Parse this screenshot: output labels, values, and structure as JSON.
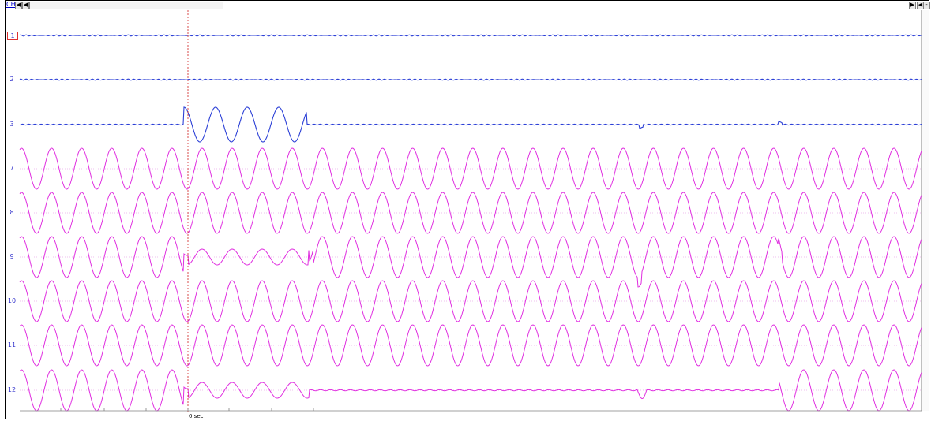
{
  "toolbar": {
    "ch_label": "CH",
    "btn_left1": "◀",
    "btn_left2": "◀",
    "btn_right1": "▶",
    "btn_right2": "◀",
    "btn_minus": "-"
  },
  "channels": [
    "1",
    "2",
    "3",
    "7",
    "8",
    "9",
    "10",
    "11",
    "12"
  ],
  "selected_channel": "1",
  "cursor_label": "0 sec",
  "colors": {
    "trace_blue": "#2b3fd6",
    "trace_magenta": "#e02ee0",
    "cursor_red": "#d02020",
    "baseline_dotted": "#e080e0"
  }
}
